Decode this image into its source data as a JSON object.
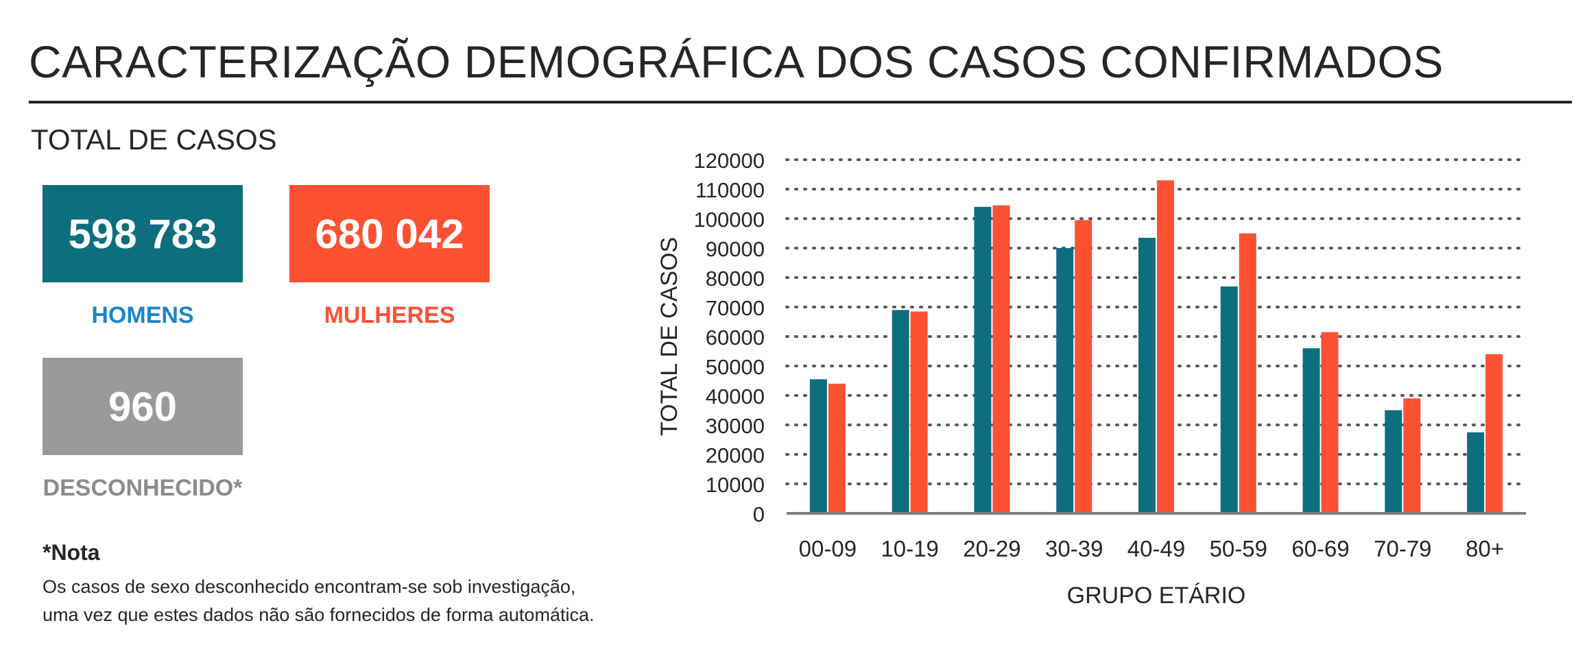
{
  "title": "CARACTERIZAÇÃO DEMOGRÁFICA DOS CASOS CONFIRMADOS",
  "subtitle": "TOTAL DE CASOS",
  "kpis": {
    "men": {
      "value": "598 783",
      "label": "HOMENS",
      "color": "#0d6e7e",
      "label_color": "#1a86c4"
    },
    "women": {
      "value": "680 042",
      "label": "MULHERES",
      "color": "#fc5133",
      "label_color": "#fc5133"
    },
    "unknown": {
      "value": "960",
      "label": "DESCONHECIDO*",
      "color": "#9a9a9a",
      "label_color": "#8c8c8c"
    }
  },
  "note": {
    "title": "*Nota",
    "line1": "Os casos de sexo desconhecido encontram-se sob investigação,",
    "line2": "uma vez que estes dados não são fornecidos de forma automática."
  },
  "chart_data": {
    "type": "bar",
    "categories": [
      "00-09",
      "10-19",
      "20-29",
      "30-39",
      "40-49",
      "50-59",
      "60-69",
      "70-79",
      "80+"
    ],
    "series": [
      {
        "values": [
          45500,
          69000,
          104000,
          90000,
          93500,
          77000,
          56000,
          35000,
          27500
        ],
        "color": "#0d6e7e"
      },
      {
        "values": [
          44000,
          68500,
          104500,
          99500,
          113000,
          95000,
          61500,
          39000,
          54000
        ],
        "color": "#fc5133"
      }
    ],
    "xlabel": "GRUPO ETÁRIO",
    "ylabel": "TOTAL DE CASOS",
    "ylim": [
      0,
      120000
    ],
    "yticks": [
      "0",
      "10000",
      "20000",
      "30000",
      "40000",
      "50000",
      "60000",
      "70000",
      "80000",
      "90000",
      "100000",
      "110000",
      "120000"
    ],
    "grid": "dotted-horizontal",
    "legend": "none"
  }
}
